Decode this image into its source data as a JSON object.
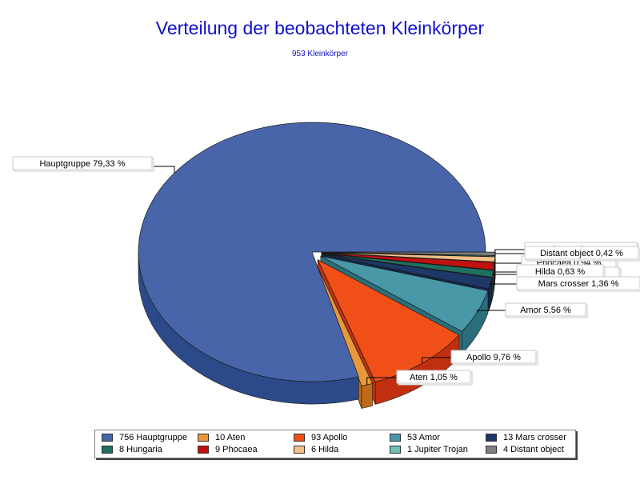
{
  "chart_data": {
    "type": "pie",
    "title": "Verteilung der beobachteten Kleinkörper",
    "subtitle": "953 Kleinkörper",
    "slices": [
      {
        "name": "Hauptgruppe",
        "count": 756,
        "label": "Hauptgruppe 79,33 %",
        "legend": "756 Hauptgruppe",
        "color": "#4765a8",
        "side": "#2c4a8a"
      },
      {
        "name": "Aten",
        "count": 10,
        "label": "Aten 1,05 %",
        "legend": "10 Aten",
        "color": "#e89a3a",
        "side": "#c06a18"
      },
      {
        "name": "Apollo",
        "count": 93,
        "label": "Apollo 9,76 %",
        "legend": "93 Apollo",
        "color": "#f05018",
        "side": "#c03010"
      },
      {
        "name": "Amor",
        "count": 53,
        "label": "Amor 5,56 %",
        "legend": "53 Amor",
        "color": "#4898a8",
        "side": "#2a6e7c"
      },
      {
        "name": "Mars crosser",
        "count": 13,
        "label": "Mars crosser 1,36 %",
        "legend": "13 Mars crosser",
        "color": "#1e3868",
        "side": "#142648"
      },
      {
        "name": "Hungaria",
        "count": 8,
        "label": "Hungaria 0,84 %",
        "legend": "8 Hungaria",
        "color": "#1e7060",
        "side": "#124c40"
      },
      {
        "name": "Phocaea",
        "count": 9,
        "label": "Phocaea 0,94 %",
        "legend": "9 Phocaea",
        "color": "#c01010",
        "side": "#880808"
      },
      {
        "name": "Hilda",
        "count": 6,
        "label": "Hilda 0,63 %",
        "legend": "6 Hilda",
        "color": "#f0c088",
        "side": "#c89858"
      },
      {
        "name": "Jupiter Trojan",
        "count": 1,
        "label": "Jupiter Trojan 0,10 %",
        "legend": "1 Jupiter Trojan",
        "color": "#70c0b0",
        "side": "#4a9488"
      },
      {
        "name": "Distant object",
        "count": 4,
        "label": "Distant object 0,42 %",
        "legend": "4 Distant object",
        "color": "#808080",
        "side": "#585858"
      }
    ]
  }
}
